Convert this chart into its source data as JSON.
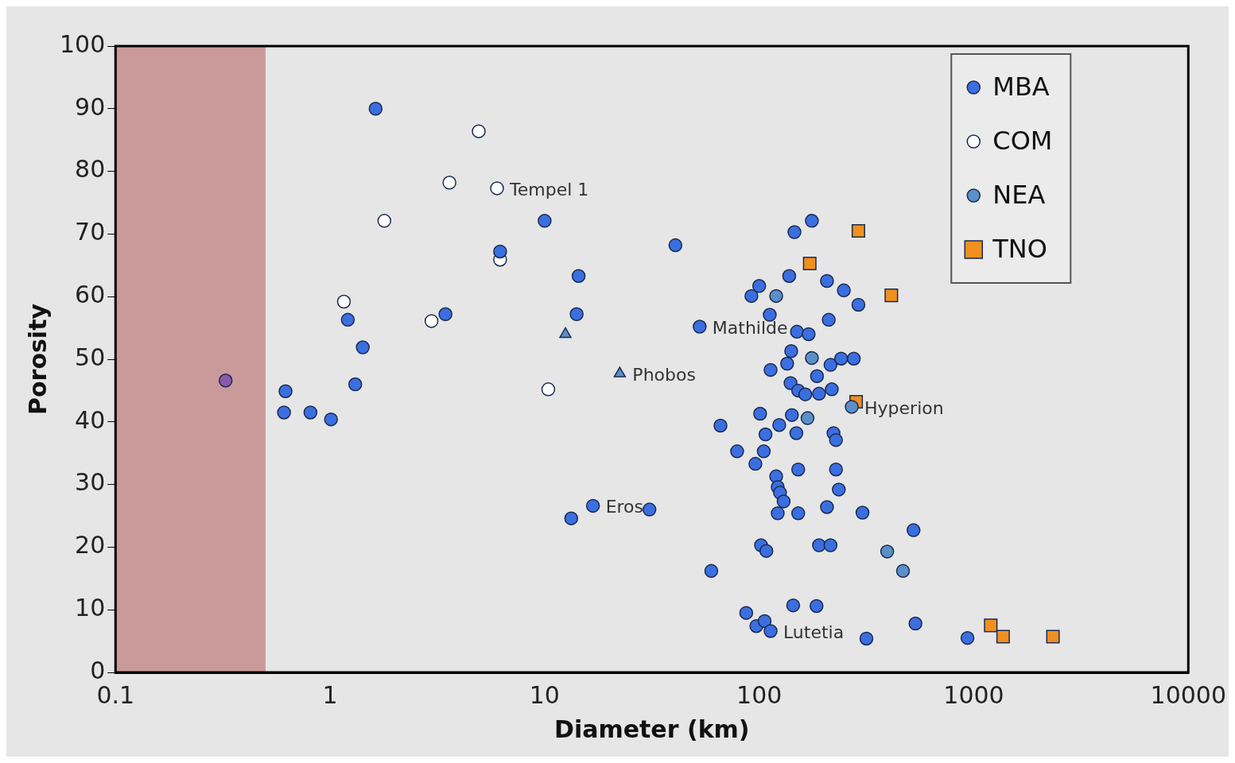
{
  "chart_data": {
    "type": "scatter",
    "xlabel": "Diameter (km)",
    "ylabel": "Porosity",
    "log": "x",
    "grid": false,
    "legend": "top right",
    "marker": "circle",
    "xlim": [
      0.1,
      10000
    ],
    "xticks": [
      0.1,
      1,
      10,
      100,
      1000,
      10000
    ],
    "ylim": [
      0,
      100
    ],
    "yticks": [
      0,
      10,
      20,
      30,
      40,
      50,
      60,
      70,
      80,
      90,
      100
    ],
    "bands": [
      {
        "axis": "x",
        "from": 0.1,
        "to": 0.5,
        "color": "#c48c8c"
      }
    ],
    "annotations": [
      {
        "text": "Tempel 1",
        "x": 6.0,
        "y": 77.3
      },
      {
        "text": "Phobos",
        "x": 22.4,
        "y": 47.7
      },
      {
        "text": "Mathilde",
        "x": 52.8,
        "y": 55.2
      },
      {
        "text": "Eros",
        "x": 16.8,
        "y": 26.6
      },
      {
        "text": "Hyperion",
        "x": 270,
        "y": 42.4
      },
      {
        "text": "Lutetia",
        "x": 113,
        "y": 6.6
      }
    ],
    "series": [
      {
        "name": "MBA",
        "color": "#3b6fe0",
        "x": [
          1.63,
          0.62,
          0.61,
          0.81,
          1.01,
          1.21,
          1.42,
          1.31,
          3.45,
          10,
          6.2,
          14.4,
          14.1,
          13.3,
          16.8,
          30.8,
          40.7,
          52.8,
          66,
          78.9,
          59.8,
          96,
          105,
          101,
          107,
          92,
          100,
          112,
          113,
          138,
          146,
          176,
          150,
          170,
          141,
          135,
          186,
          140,
          152,
          164,
          190,
          218,
          215,
          241,
          276,
          211,
          207,
          248,
          290,
          142,
          149,
          124,
          222,
          228,
          152,
          228,
          235,
          120,
          122,
          125,
          130,
          122,
          152,
          207,
          303,
          524,
          102,
          108,
          190,
          215,
          87,
          97,
          106,
          113,
          144,
          185,
          316,
          535,
          935
        ],
        "values": [
          90,
          44.9,
          41.5,
          41.5,
          40.4,
          56.3,
          51.9,
          46,
          57.2,
          72.1,
          67.2,
          63.3,
          57.2,
          24.6,
          26.6,
          26,
          68.2,
          55.2,
          39.4,
          35.3,
          16.2,
          33.3,
          35.3,
          41.3,
          38,
          60.1,
          61.7,
          57.1,
          48.3,
          63.3,
          70.3,
          72.1,
          54.4,
          54,
          51.3,
          49.3,
          47.3,
          46.2,
          45,
          44.4,
          44.5,
          45.2,
          49.1,
          50.1,
          50.1,
          56.3,
          62.5,
          61,
          58.7,
          41.1,
          38.2,
          39.5,
          38.2,
          37.1,
          32.4,
          32.4,
          29.2,
          31.3,
          29.6,
          28.7,
          27.3,
          25.4,
          25.4,
          26.4,
          25.5,
          22.7,
          20.3,
          19.4,
          20.3,
          20.3,
          9.5,
          7.4,
          8.2,
          6.6,
          10.7,
          10.6,
          5.4,
          7.8,
          5.5
        ]
      },
      {
        "name": "COM",
        "color": "#ffffff",
        "x": [
          4.93,
          3.6,
          6.0,
          1.79,
          6.2,
          1.16,
          2.97,
          10.4
        ],
        "values": [
          86.4,
          78.2,
          77.3,
          72.1,
          65.9,
          59.2,
          56.1,
          45.2
        ]
      },
      {
        "name": "NEA",
        "color": "#5a8fc8",
        "x": [
          120,
          176,
          168,
          270,
          395,
          468
        ],
        "values": [
          60.1,
          50.2,
          40.6,
          42.4,
          19.3,
          16.2
        ]
      },
      {
        "name": "TNO",
        "color": "#f0901e",
        "marker": "square",
        "x": [
          290,
          172,
          413,
          283,
          1200,
          1370,
          2340
        ],
        "values": [
          70.5,
          65.3,
          60.2,
          43.2,
          7.5,
          5.7,
          5.7
        ]
      },
      {
        "color": "#5a8fc8",
        "marker": "triangle",
        "x": [
          12.5,
          22.4
        ],
        "values": [
          54,
          47.7
        ]
      },
      {
        "color": "#8a5aa8",
        "x": [
          0.326
        ],
        "values": [
          46.6
        ]
      }
    ]
  }
}
